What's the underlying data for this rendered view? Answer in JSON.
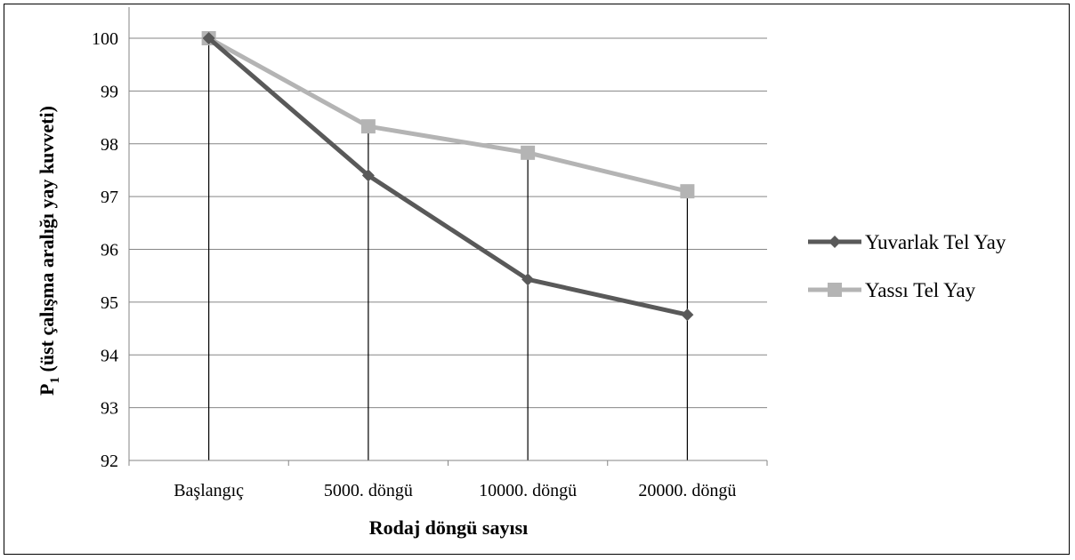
{
  "chart_data": {
    "type": "line",
    "categories": [
      "Başlangıç",
      "5000. döngü",
      "10000. döngü",
      "20000. döngü"
    ],
    "series": [
      {
        "name": "Yuvarlak Tel Yay",
        "values": [
          100,
          97.4,
          95.43,
          94.76
        ],
        "color": "#595959",
        "marker": "diamond"
      },
      {
        "name": "Yassı Tel Yay",
        "values": [
          100,
          98.33,
          97.83,
          97.1
        ],
        "color": "#b4b4b4",
        "marker": "square"
      }
    ],
    "ylim": [
      92,
      100
    ],
    "yticks": [
      "92",
      "93",
      "94",
      "95",
      "96",
      "97",
      "98",
      "99",
      "100"
    ],
    "xlabel": "Rodaj döngü sayısı",
    "ylabel_main": "P",
    "ylabel_sub": "1",
    "ylabel_rest": " (üst çalışma aralığı yay kuvveti)",
    "grid": true,
    "drop_lines": true,
    "legend_position": "right"
  }
}
